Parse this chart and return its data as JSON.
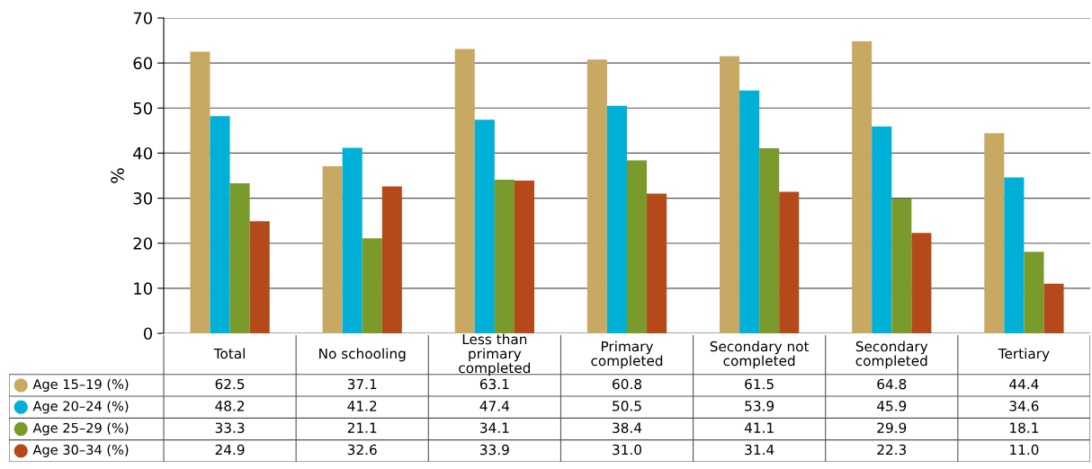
{
  "chart_data": {
    "type": "bar",
    "ylabel": "%",
    "categories": [
      "Total",
      "No schooling",
      "Less than primary completed",
      "Primary completed",
      "Secondary not completed",
      "Secondary completed",
      "Tertiary"
    ],
    "series": [
      {
        "name": "Age 15–19 (%)",
        "color": "#c8a964",
        "values": [
          62.5,
          37.1,
          63.1,
          60.8,
          61.5,
          64.8,
          44.4
        ],
        "value_labels": [
          "62.5",
          "37.1",
          "63.1",
          "60.8",
          "61.5",
          "64.8",
          "44.4"
        ]
      },
      {
        "name": "Age 20–24 (%)",
        "color": "#00b0d6",
        "values": [
          48.2,
          41.2,
          47.4,
          50.5,
          53.9,
          45.9,
          34.6
        ],
        "value_labels": [
          "48.2",
          "41.2",
          "47.4",
          "50.5",
          "53.9",
          "45.9",
          "34.6"
        ]
      },
      {
        "name": "Age 25–29 (%)",
        "color": "#7a9a2c",
        "values": [
          33.3,
          21.1,
          34.1,
          38.4,
          41.1,
          29.9,
          18.1
        ],
        "value_labels": [
          "33.3",
          "21.1",
          "34.1",
          "38.4",
          "41.1",
          "29.9",
          "18.1"
        ]
      },
      {
        "name": "Age 30–34 (%)",
        "color": "#b5491a",
        "values": [
          24.9,
          32.6,
          33.9,
          31.0,
          31.4,
          22.3,
          11.0
        ],
        "value_labels": [
          "24.9",
          "32.6",
          "33.9",
          "31.0",
          "31.4",
          "22.3",
          "11.0"
        ]
      }
    ],
    "ylim": [
      0,
      70
    ],
    "yticks": [
      0,
      10,
      20,
      30,
      40,
      50,
      60,
      70
    ],
    "grid": "y",
    "legend": "bottom left"
  }
}
